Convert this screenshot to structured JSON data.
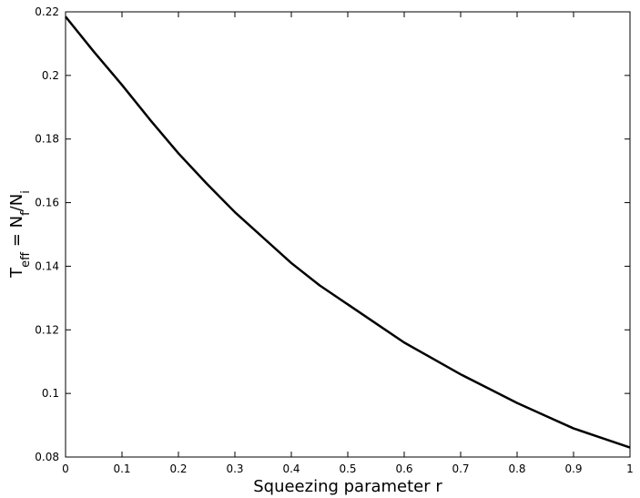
{
  "chart_data": {
    "type": "line",
    "xlabel": "Squeezing parameter r",
    "ylabel": [
      {
        "text": "T"
      },
      {
        "text": "eff",
        "sub": true
      },
      {
        "text": " = N"
      },
      {
        "text": "f",
        "sub": true
      },
      {
        "text": "/N"
      },
      {
        "text": "i",
        "sub": true
      }
    ],
    "x": [
      0,
      0.05,
      0.1,
      0.15,
      0.2,
      0.25,
      0.3,
      0.35,
      0.4,
      0.45,
      0.5,
      0.55,
      0.6,
      0.65,
      0.7,
      0.75,
      0.8,
      0.85,
      0.9,
      0.95,
      1
    ],
    "series": [
      {
        "color": "#000000",
        "values": [
          0.2185,
          0.2075,
          0.197,
          0.186,
          0.1755,
          0.166,
          0.157,
          0.149,
          0.141,
          0.134,
          0.128,
          0.122,
          0.116,
          0.111,
          0.106,
          0.1015,
          0.097,
          0.093,
          0.089,
          0.086,
          0.083
        ]
      }
    ],
    "xlim": [
      0,
      1
    ],
    "xticks": [
      0,
      0.1,
      0.2,
      0.3,
      0.4,
      0.5,
      0.6,
      0.7,
      0.8,
      0.9,
      1
    ],
    "ylim": [
      0.08,
      0.22
    ],
    "yticks": [
      0.08,
      0.1,
      0.12,
      0.14,
      0.16,
      0.18,
      0.2,
      0.22
    ],
    "grid": false
  }
}
